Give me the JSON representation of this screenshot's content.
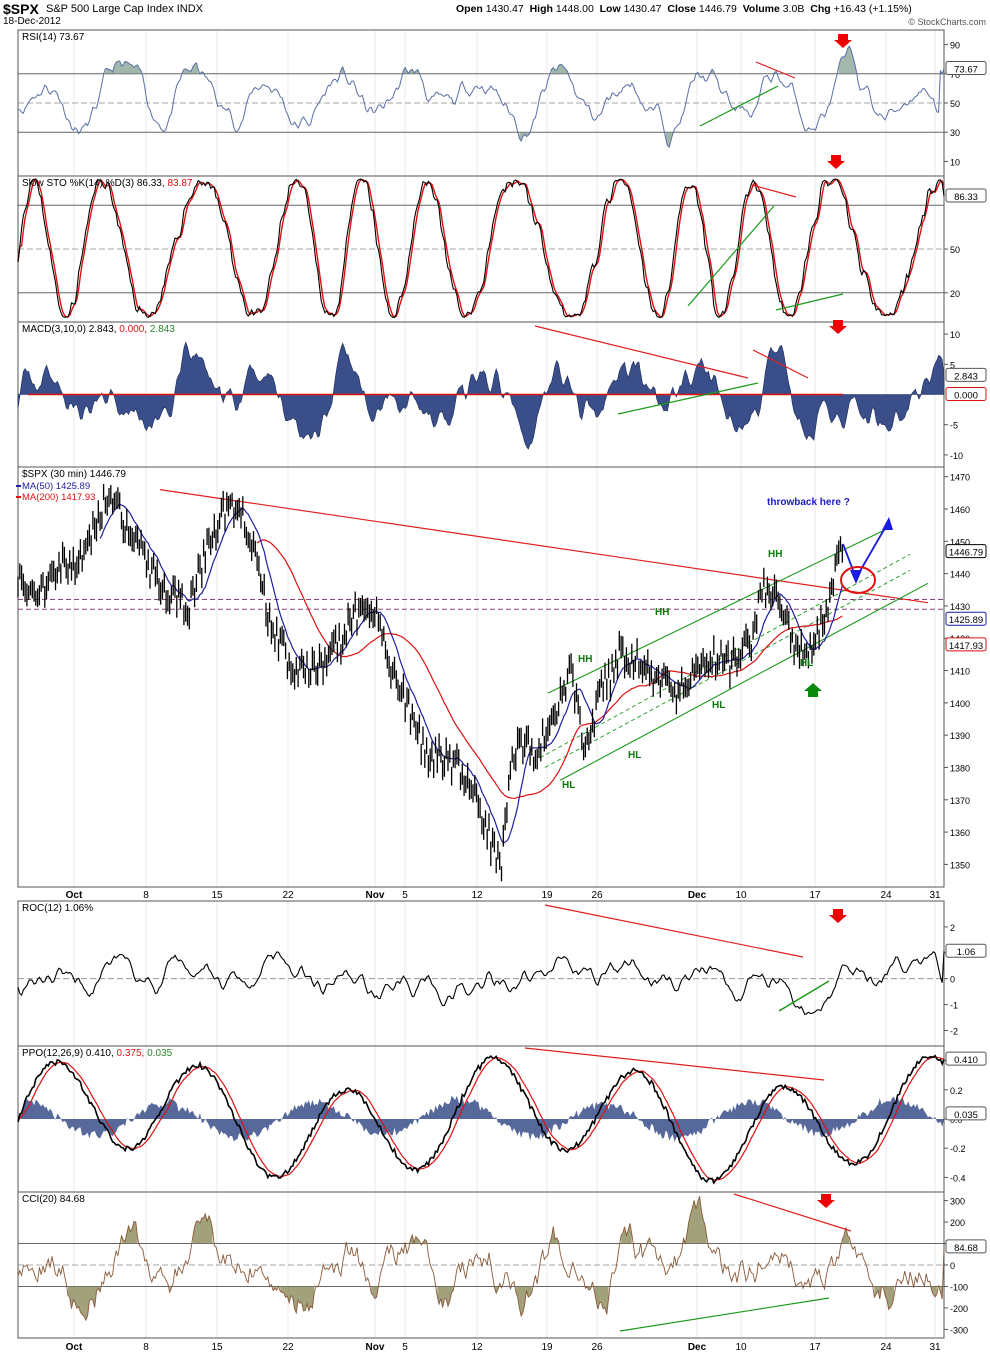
{
  "header": {
    "symbol": "$SPX",
    "name": "S&P 500 Large Cap Index",
    "exchange": "INDX",
    "date": "18-Dec-2012",
    "open_label": "Open",
    "open": "1430.47",
    "high_label": "High",
    "high": "1448.00",
    "low_label": "Low",
    "low": "1430.47",
    "close_label": "Close",
    "close": "1446.79",
    "volume_label": "Volume",
    "volume": "3.0B",
    "chg_label": "Chg",
    "chg": "+16.43 (+1.15%)",
    "brand": "© StockCharts.com"
  },
  "colors": {
    "price": "#000000",
    "ma50": "#1f1fa0",
    "ma200": "#dd1111",
    "trend_red": "#e02020",
    "trend_green": "#1a9a1a",
    "rsi": "#5a6fa6",
    "rsi_fill": "#7a9a8a",
    "macd_fill": "#3a4f8a",
    "cci": "#8a5a3a",
    "cci_fill": "#8a8a5a",
    "arrow_blue": "#1a1ae0",
    "annot_green": "#0a7a0a",
    "throwback": "#1a1acc"
  },
  "x_axis": {
    "labels": [
      "Oct",
      "8",
      "15",
      "22",
      "Nov",
      "5",
      "12",
      "19",
      "26",
      "Dec",
      "10",
      "17",
      "24",
      "31"
    ],
    "bold": [
      "Oct",
      "Nov",
      "Dec"
    ]
  },
  "chart_data": [
    {
      "type": "line",
      "panel": "rsi",
      "title": "RSI(14) 73.67",
      "last_value": "73.67",
      "ticks": [
        "90",
        "70",
        "50",
        "30",
        "10"
      ],
      "ylim": [
        0,
        100
      ],
      "reference_lines": [
        70,
        50,
        30
      ]
    },
    {
      "type": "line",
      "panel": "slow_sto",
      "title_prefix": "Slow STO %K(14) %D(3)",
      "k": "86.33",
      "d": "83.87",
      "last_value": "86.33",
      "ticks": [
        "50",
        "20"
      ],
      "ylim": [
        0,
        100
      ],
      "reference_lines": [
        80,
        50,
        20
      ]
    },
    {
      "type": "area",
      "panel": "macd",
      "title_prefix": "MACD(3,10,0)",
      "macd": "2.843",
      "signal": "0.000",
      "hist": "2.843",
      "last_values": [
        "2.843",
        "0.000"
      ],
      "ticks": [
        "10",
        "5",
        "-5",
        "-10"
      ],
      "ylim": [
        -12,
        12
      ]
    },
    {
      "type": "line",
      "panel": "price",
      "title": "$SPX (30 min) 1446.79",
      "legend": [
        {
          "name": "MA(50) 1425.89",
          "color": "#1f1fa0"
        },
        {
          "name": "MA(200) 1417.93",
          "color": "#dd1111"
        }
      ],
      "last_values": [
        "1446.79",
        "1425.89",
        "1417.93"
      ],
      "ticks": [
        "1470",
        "1460",
        "1450",
        "1440",
        "1430",
        "1420",
        "1410",
        "1400",
        "1390",
        "1380",
        "1370",
        "1360",
        "1350"
      ],
      "ylim": [
        1343,
        1473
      ],
      "annotations": [
        "HH",
        "HH",
        "HH",
        "HL",
        "HL",
        "HL",
        "HL"
      ],
      "throwback_text": "throwback here ?"
    },
    {
      "type": "line",
      "panel": "roc",
      "title": "ROC(12) 1.06%",
      "last_value": "1.06",
      "ticks": [
        "2",
        "1",
        "0",
        "-1",
        "-2"
      ],
      "ylim": [
        -2.6,
        3.0
      ]
    },
    {
      "type": "line",
      "panel": "ppo",
      "title_prefix": "PPO(12,26,9)",
      "ppo": "0.410",
      "signal": "0.375",
      "hist": "0.035",
      "last_values": [
        "0.410",
        "0.035"
      ],
      "ticks": [
        "0.4",
        "0.2",
        "0.0",
        "-0.2",
        "-0.4"
      ],
      "ylim": [
        -0.5,
        0.5
      ]
    },
    {
      "type": "area",
      "panel": "cci",
      "title": "CCI(20) 84.68",
      "last_value": "84.68",
      "ticks": [
        "300",
        "200",
        "100",
        "0",
        "-100",
        "-200",
        "-300"
      ],
      "ylim": [
        -340,
        340
      ]
    }
  ]
}
